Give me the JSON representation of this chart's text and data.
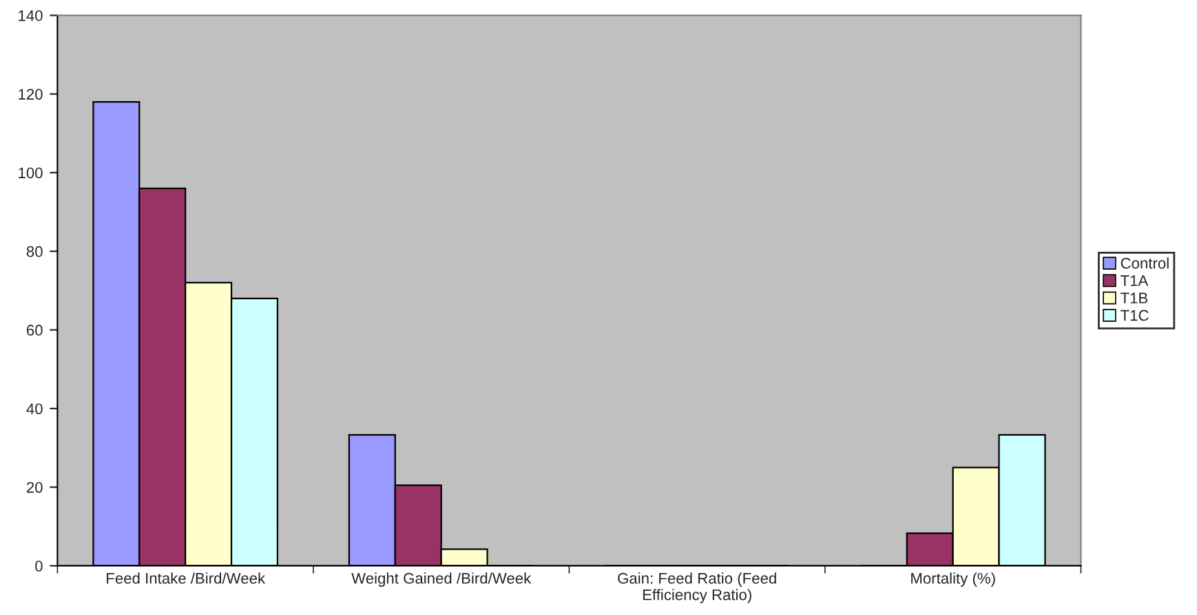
{
  "chart_data": {
    "type": "bar",
    "categories": [
      "Feed Intake /Bird/Week",
      "Weight Gained /Bird/Week",
      "Gain: Feed Ratio (Feed\nEfficiency Ratio)",
      "Mortality (%)"
    ],
    "series": [
      {
        "name": "Control",
        "color": "#9999ff",
        "values": [
          118,
          33.3,
          null,
          0
        ]
      },
      {
        "name": "T1A",
        "color": "#993366",
        "values": [
          96,
          20.5,
          null,
          8.3
        ]
      },
      {
        "name": "T1B",
        "color": "#ffffcc",
        "values": [
          72,
          4.2,
          null,
          25
        ]
      },
      {
        "name": "T1C",
        "color": "#ccffff",
        "values": [
          68,
          null,
          null,
          33.3
        ]
      }
    ],
    "ylim": [
      0,
      140
    ],
    "yticks": [
      0,
      20,
      40,
      60,
      80,
      100,
      120,
      140
    ],
    "grid": false,
    "legend": "right"
  }
}
